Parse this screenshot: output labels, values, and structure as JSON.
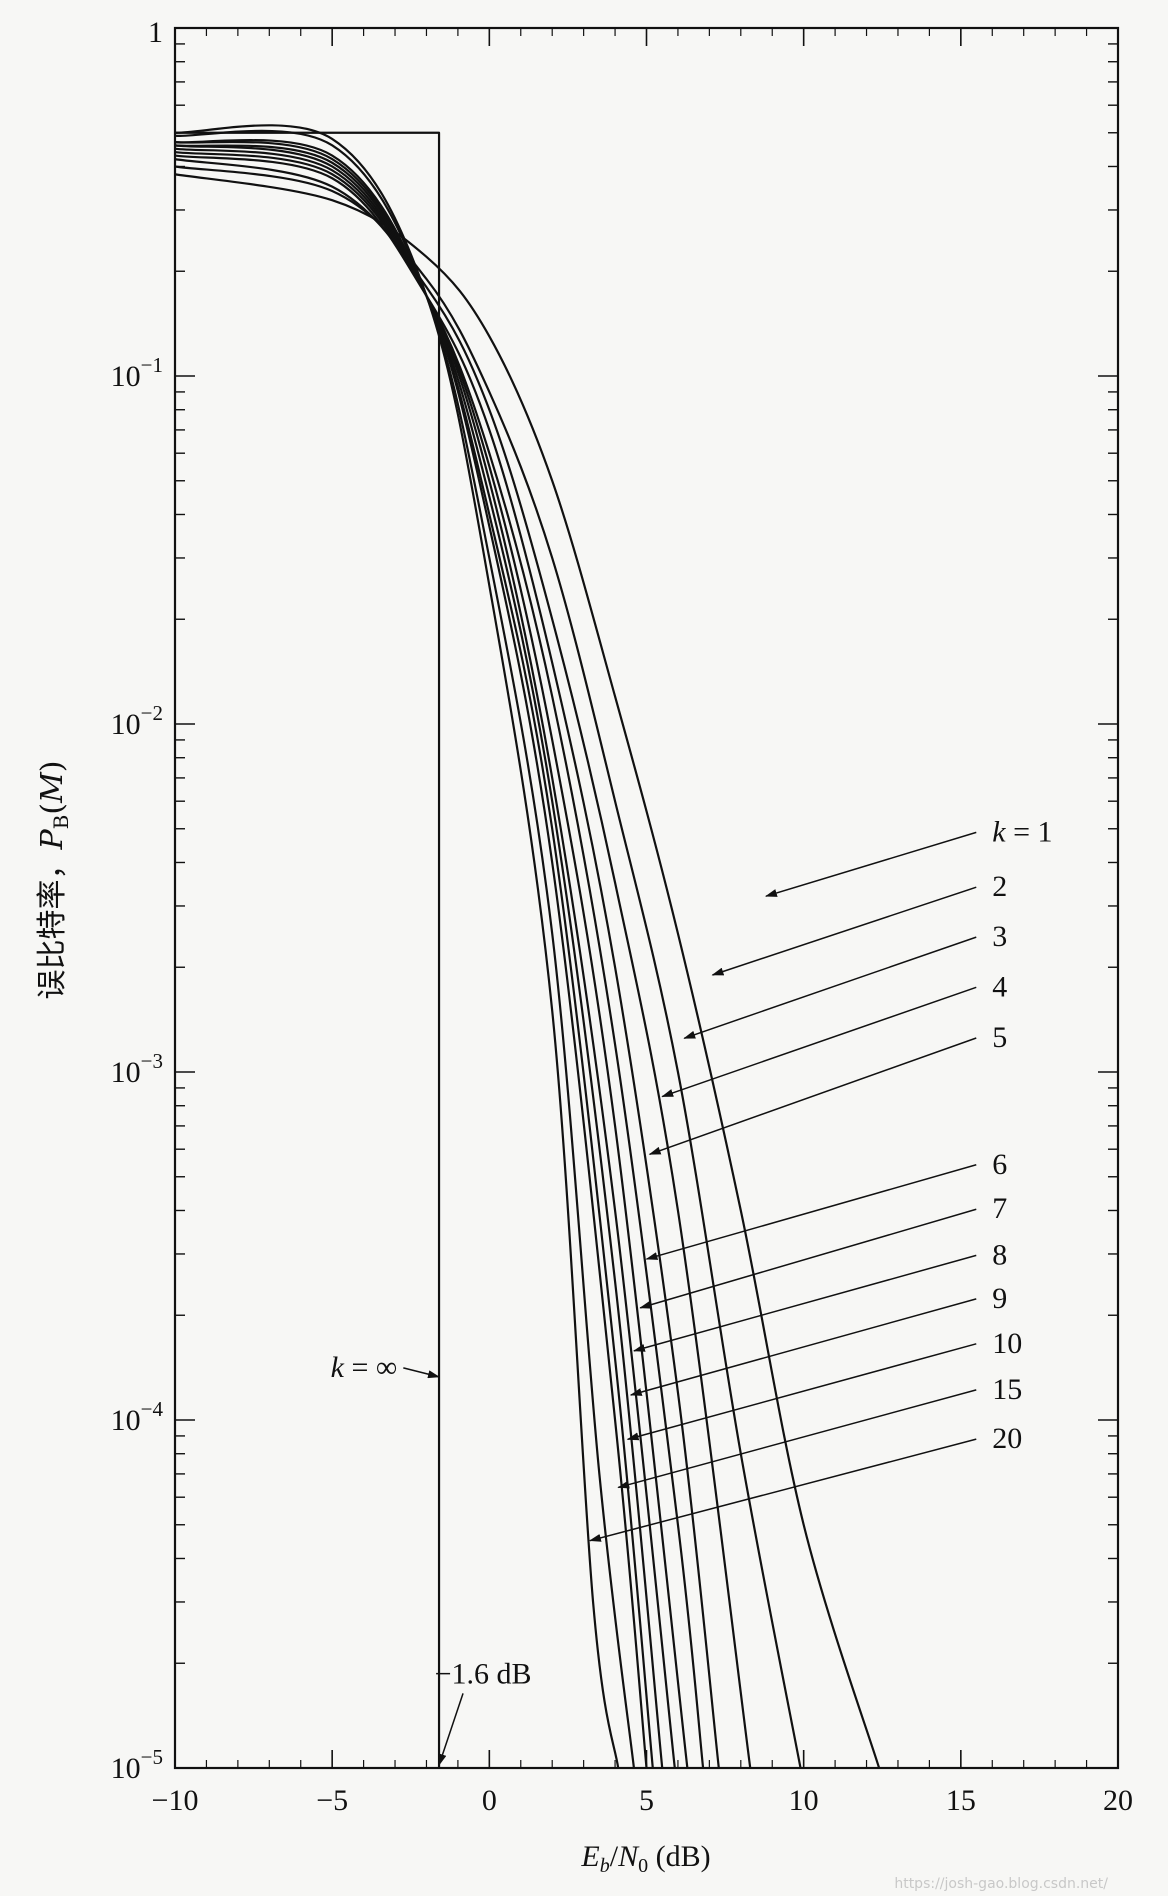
{
  "chart_data": {
    "type": "line",
    "y_scale": "log",
    "xlabel": "E_b/N_0 (dB)",
    "ylabel": "误比特率，P_B(M)",
    "xlim": [
      -10,
      20
    ],
    "ylim": [
      1e-05,
      1
    ],
    "grid": false,
    "x_ticks": [
      "−10",
      "−5",
      "0",
      "5",
      "10",
      "15",
      "20"
    ],
    "y_ticks": [
      {
        "base": "1",
        "exp": ""
      },
      {
        "base": "10",
        "exp": "−1"
      },
      {
        "base": "10",
        "exp": "−2"
      },
      {
        "base": "10",
        "exp": "−3"
      },
      {
        "base": "10",
        "exp": "−4"
      },
      {
        "base": "10",
        "exp": "−5"
      }
    ],
    "series": [
      {
        "name": "k = 1",
        "x": [
          -10,
          -5,
          -2,
          0,
          2,
          4,
          6,
          8,
          10,
          12.4
        ],
        "y": [
          0.38,
          0.32,
          0.22,
          0.13,
          0.05,
          0.012,
          0.0025,
          0.0004,
          5e-05,
          1e-05
        ]
      },
      {
        "name": "2",
        "x": [
          -10,
          -5,
          -2,
          0,
          2,
          4,
          6,
          8,
          9.9
        ],
        "y": [
          0.4,
          0.34,
          0.19,
          0.09,
          0.03,
          0.006,
          0.001,
          8e-05,
          1e-05
        ]
      },
      {
        "name": "3",
        "x": [
          -10,
          -5,
          -2,
          0,
          2,
          4,
          6,
          8.3
        ],
        "y": [
          0.42,
          0.35,
          0.18,
          0.08,
          0.02,
          0.0035,
          0.0004,
          1e-05
        ]
      },
      {
        "name": "4",
        "x": [
          -10,
          -5,
          -2,
          0,
          2,
          4,
          6,
          7.3
        ],
        "y": [
          0.43,
          0.37,
          0.17,
          0.07,
          0.015,
          0.002,
          0.00012,
          1e-05
        ]
      },
      {
        "name": "5",
        "x": [
          -10,
          -5,
          -2,
          0,
          2,
          4,
          6,
          6.8
        ],
        "y": [
          0.44,
          0.38,
          0.17,
          0.06,
          0.012,
          0.0012,
          5e-05,
          1e-05
        ]
      },
      {
        "name": "6",
        "x": [
          -10,
          -5,
          -2,
          0,
          2,
          4,
          6.3
        ],
        "y": [
          0.45,
          0.39,
          0.17,
          0.055,
          0.009,
          0.0007,
          1e-05
        ]
      },
      {
        "name": "7",
        "x": [
          -10,
          -5,
          -2,
          0,
          2,
          4,
          5.9
        ],
        "y": [
          0.46,
          0.4,
          0.17,
          0.05,
          0.007,
          0.0004,
          1e-05
        ]
      },
      {
        "name": "8",
        "x": [
          -10,
          -5,
          -2,
          0,
          2,
          4,
          5.5
        ],
        "y": [
          0.46,
          0.41,
          0.17,
          0.045,
          0.006,
          0.00025,
          1e-05
        ]
      },
      {
        "name": "9",
        "x": [
          -10,
          -5,
          -2,
          0,
          2,
          4,
          5.2
        ],
        "y": [
          0.47,
          0.42,
          0.17,
          0.04,
          0.005,
          0.00015,
          1e-05
        ]
      },
      {
        "name": "10",
        "x": [
          -10,
          -5,
          -2,
          0,
          2,
          4,
          5.0
        ],
        "y": [
          0.47,
          0.43,
          0.17,
          0.037,
          0.004,
          0.0001,
          1e-05
        ]
      },
      {
        "name": "15",
        "x": [
          -10,
          -5,
          -2,
          0,
          2,
          3.5,
          4.6
        ],
        "y": [
          0.49,
          0.46,
          0.17,
          0.03,
          0.0025,
          7e-05,
          1e-05
        ]
      },
      {
        "name": "20",
        "x": [
          -10,
          -5,
          -2,
          0,
          2,
          3.3,
          4.1
        ],
        "y": [
          0.5,
          0.48,
          0.17,
          0.025,
          0.0015,
          3e-05,
          1e-05
        ]
      },
      {
        "name": "k = ∞",
        "x": [
          -10,
          -1.6,
          -1.6
        ],
        "y": [
          0.5,
          0.5,
          1e-05
        ]
      }
    ],
    "annotations": [
      {
        "text": "k = 1",
        "x": 16.0,
        "y": 0.0046,
        "arrow_to": [
          8.8,
          0.0032
        ]
      },
      {
        "text": "2",
        "x": 16.0,
        "y": 0.0032,
        "arrow_to": [
          7.1,
          0.0019
        ]
      },
      {
        "text": "3",
        "x": 16.0,
        "y": 0.0023,
        "arrow_to": [
          6.2,
          0.00125
        ]
      },
      {
        "text": "4",
        "x": 16.0,
        "y": 0.00165,
        "arrow_to": [
          5.5,
          0.00085
        ]
      },
      {
        "text": "5",
        "x": 16.0,
        "y": 0.00118,
        "arrow_to": [
          5.1,
          0.00058
        ]
      },
      {
        "text": "6",
        "x": 16.0,
        "y": 0.00051,
        "arrow_to": [
          5.0,
          0.00029
        ]
      },
      {
        "text": "7",
        "x": 16.0,
        "y": 0.00038,
        "arrow_to": [
          4.8,
          0.00021
        ]
      },
      {
        "text": "8",
        "x": 16.0,
        "y": 0.00028,
        "arrow_to": [
          4.6,
          0.000158
        ]
      },
      {
        "text": "9",
        "x": 16.0,
        "y": 0.00021,
        "arrow_to": [
          4.5,
          0.000118
        ]
      },
      {
        "text": "10",
        "x": 16.0,
        "y": 0.000156,
        "arrow_to": [
          4.4,
          8.8e-05
        ]
      },
      {
        "text": "15",
        "x": 16.0,
        "y": 0.000115,
        "arrow_to": [
          4.1,
          6.4e-05
        ]
      },
      {
        "text": "20",
        "x": 16.0,
        "y": 8.3e-05,
        "arrow_to": [
          3.2,
          4.5e-05
        ]
      },
      {
        "text": "k = ∞",
        "x": -4.2,
        "y": 0.000133,
        "arrow_to": [
          -1.6,
          0.000133
        ]
      },
      {
        "text": "−1.6 dB",
        "x": -0.2,
        "y": 1.75e-05,
        "arrow_to": [
          -1.6,
          1.02e-05
        ]
      }
    ]
  },
  "watermark": "https://josh-gao.blog.csdn.net/"
}
